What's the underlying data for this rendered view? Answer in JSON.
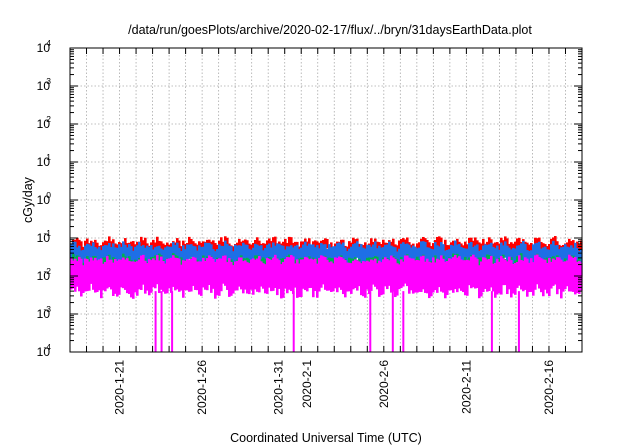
{
  "chart_data": {
    "type": "line",
    "title": "/data/run/goesPlots/archive/2020-02-17/flux/../bryn/31daysEarthData.plot",
    "xlabel": "Coordinated Universal Time (UTC)",
    "ylabel": "cGy/day",
    "yscale": "log",
    "ylim": [
      0.0001,
      10000
    ],
    "xlim": [
      "2020-01-18",
      "2020-02-18"
    ],
    "y_ticks": [
      {
        "base": "10",
        "exp": "-4",
        "value": 0.0001
      },
      {
        "base": "10",
        "exp": "-3",
        "value": 0.001
      },
      {
        "base": "10",
        "exp": "-2",
        "value": 0.01
      },
      {
        "base": "10",
        "exp": "-1",
        "value": 0.1
      },
      {
        "base": "10",
        "exp": "0",
        "value": 1
      },
      {
        "base": "10",
        "exp": "1",
        "value": 10
      },
      {
        "base": "10",
        "exp": "2",
        "value": 100
      },
      {
        "base": "10",
        "exp": "3",
        "value": 1000
      },
      {
        "base": "10",
        "exp": "4",
        "value": 10000
      }
    ],
    "x_tick_labels": [
      {
        "date": "2020-01-21",
        "label": "2020-1-21"
      },
      {
        "date": "2020-01-26",
        "label": "2020-1-26"
      },
      {
        "date": "2020-01-31",
        "label": "2020-1-31"
      },
      {
        "date": "2020-02-01",
        "label": "2020-2-1"
      },
      {
        "date": "2020-02-06",
        "label": "2020-2-6"
      },
      {
        "date": "2020-02-11",
        "label": "2020-2-11"
      },
      {
        "date": "2020-02-16",
        "label": "2020-2-16"
      }
    ],
    "grid": true,
    "series": [
      {
        "color": "#ff0000",
        "typical_low": 0.04,
        "typical_high": 0.085
      },
      {
        "color": "#1e6fe6",
        "typical_low": 0.02,
        "typical_high": 0.065
      },
      {
        "color": "#00b050",
        "typical_low": 0.012,
        "typical_high": 0.03
      },
      {
        "color": "#ff00ff",
        "typical_low": 0.004,
        "typical_high": 0.028
      }
    ],
    "magenta_dropouts": [
      "2020-01-23",
      "2020-01-23",
      "2020-01-24",
      "2020-01-31",
      "2020-02-05",
      "2020-02-06",
      "2020-02-07",
      "2020-02-12",
      "2020-02-14"
    ]
  }
}
